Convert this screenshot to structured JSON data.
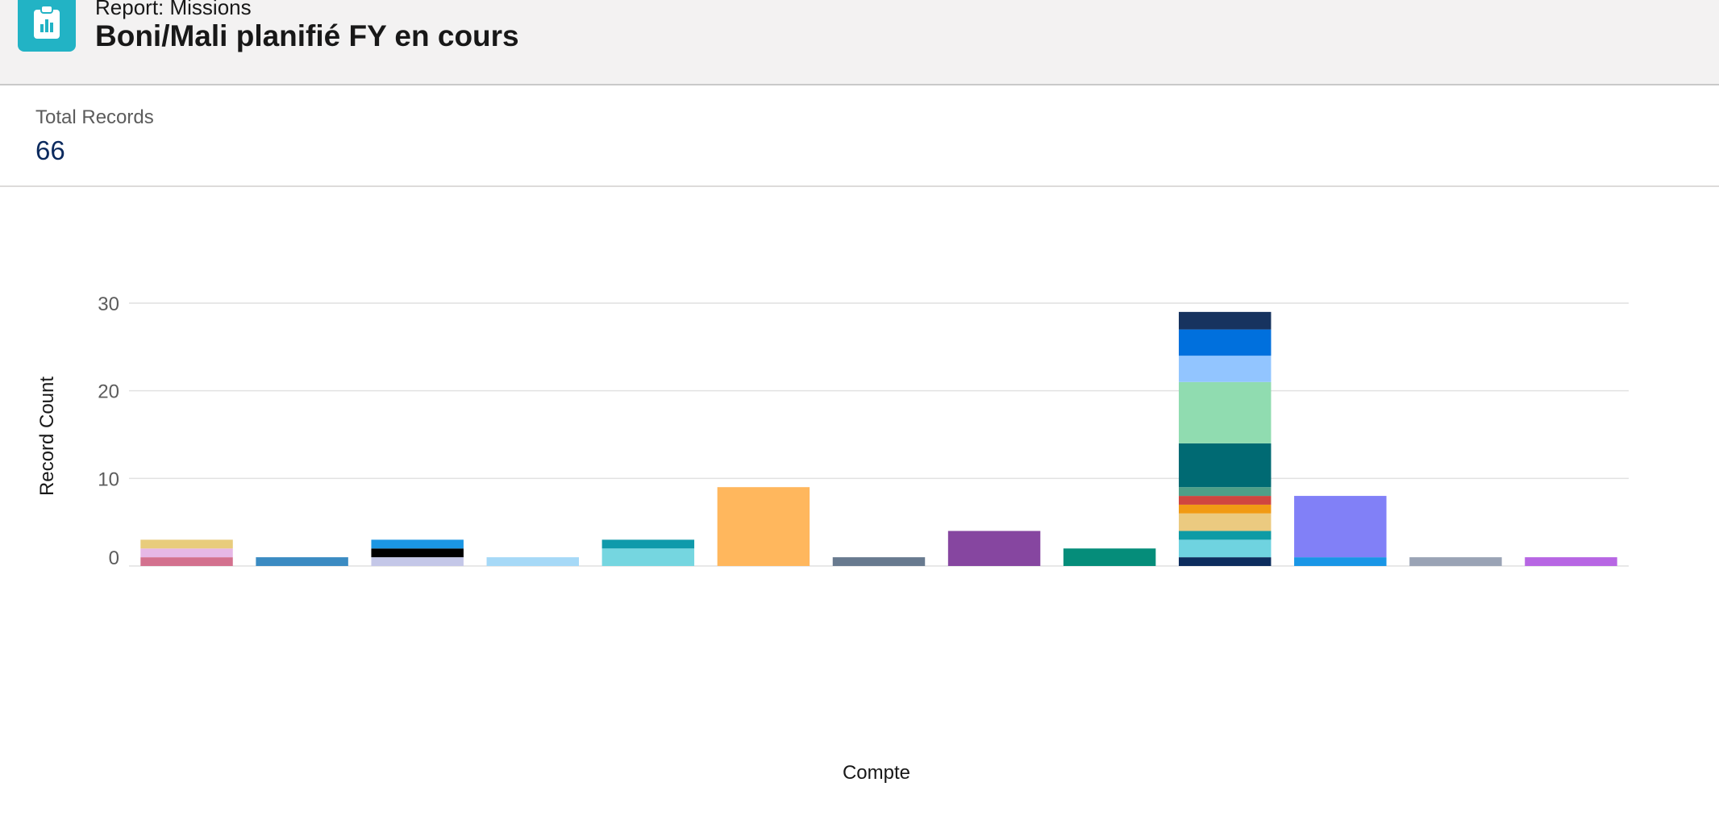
{
  "header": {
    "report_type": "Report: Missions",
    "title": "Boni/Mali planifié FY en cours",
    "icon": "report-clipboard-icon",
    "icon_color": "#22b3c5"
  },
  "summary": {
    "label": "Total Records",
    "value": "66"
  },
  "chart_data": {
    "type": "bar",
    "stacked": true,
    "xlabel": "Compte",
    "ylabel": "Record Count",
    "ylim": [
      0,
      30
    ],
    "yticks": [
      0,
      10,
      20,
      30
    ],
    "grid": true,
    "bars": [
      {
        "segments": [
          {
            "value": 1,
            "color": "#d3718e"
          },
          {
            "value": 1,
            "color": "#e6b8e6"
          },
          {
            "value": 1,
            "color": "#e8cc7c"
          }
        ]
      },
      {
        "segments": [
          {
            "value": 1,
            "color": "#3b8bc2"
          }
        ]
      },
      {
        "segments": [
          {
            "value": 1,
            "color": "#c4c7e8"
          },
          {
            "value": 1,
            "color": "#000000"
          },
          {
            "value": 1,
            "color": "#1b96e4"
          }
        ]
      },
      {
        "segments": [
          {
            "value": 1,
            "color": "#a6d9f7"
          }
        ]
      },
      {
        "segments": [
          {
            "value": 2,
            "color": "#75d6e0"
          },
          {
            "value": 1,
            "color": "#0f9aab"
          }
        ]
      },
      {
        "segments": [
          {
            "value": 9,
            "color": "#ffb75d"
          }
        ]
      },
      {
        "segments": [
          {
            "value": 1,
            "color": "#687a8f"
          }
        ]
      },
      {
        "segments": [
          {
            "value": 4,
            "color": "#8646a0"
          }
        ]
      },
      {
        "segments": [
          {
            "value": 2,
            "color": "#058d7a"
          }
        ]
      },
      {
        "segments": [
          {
            "value": 1,
            "color": "#0d2d5e"
          },
          {
            "value": 2,
            "color": "#6fd3e0"
          },
          {
            "value": 1,
            "color": "#0e9ba5"
          },
          {
            "value": 2,
            "color": "#ebca80"
          },
          {
            "value": 1,
            "color": "#f19a14"
          },
          {
            "value": 1,
            "color": "#d0463f"
          },
          {
            "value": 1,
            "color": "#4f9f88"
          },
          {
            "value": 5,
            "color": "#006a73"
          },
          {
            "value": 7,
            "color": "#90dcb0"
          },
          {
            "value": 3,
            "color": "#92c5ff"
          },
          {
            "value": 3,
            "color": "#0070dd"
          },
          {
            "value": 2,
            "color": "#17335f"
          }
        ]
      },
      {
        "segments": [
          {
            "value": 1,
            "color": "#1a96e6"
          },
          {
            "value": 7,
            "color": "#8180f7"
          }
        ]
      },
      {
        "segments": [
          {
            "value": 1,
            "color": "#9aa3b5"
          }
        ]
      },
      {
        "segments": [
          {
            "value": 1,
            "color": "#b766e3"
          }
        ]
      }
    ]
  }
}
